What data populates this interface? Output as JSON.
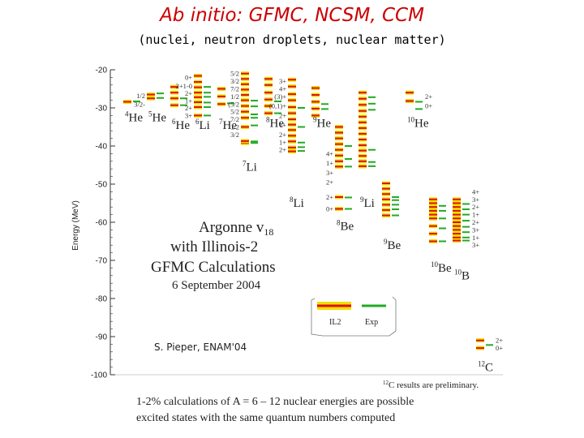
{
  "slide": {
    "title": "Ab initio: GFMC, NCSM, CCM",
    "subtitle": "(nuclei, neutron droplets, nuclear matter)",
    "caption_line1": "1-2% calculations of A = 6 – 12 nuclear energies are possible",
    "caption_line2": "excited states with the same quantum numbers computed"
  },
  "chart_data": {
    "type": "level-scheme",
    "ylabel": "Energy (MeV)",
    "ylim": [
      -100,
      -20
    ],
    "yticks": [
      -20,
      -30,
      -40,
      -50,
      -60,
      -70,
      -80,
      -90,
      -100
    ],
    "colors": {
      "il2": "#dd1100",
      "exp": "#22aa22",
      "band": "#f0e000",
      "axis": "#333333"
    },
    "annotations": {
      "box_line1": "Argonne v",
      "box_line1_sub": "18",
      "box_line2": "with Illinois-2",
      "box_line3": "GFMC Calculations",
      "box_line4": "6 September 2004",
      "legend_il2": "IL2",
      "legend_exp": "Exp",
      "credit": "S. Pieper, ENAM'04",
      "prelim_sup": "12",
      "prelim_text": "C results are preliminary."
    },
    "nuclei": [
      {
        "mass": "4",
        "symbol": "He",
        "col": 0,
        "label_e": -33.5,
        "il2": [
          -28.4
        ],
        "exp": [
          -28.3
        ]
      },
      {
        "mass": "5",
        "symbol": "He",
        "col": 1,
        "label_e": -33.5,
        "il2": [
          -27.5,
          -26.5
        ],
        "exp": [
          -27.4,
          -26.2
        ]
      },
      {
        "mass": "6",
        "symbol": "He",
        "col": 2,
        "label_e": -35.5,
        "il2": [
          -29.3,
          -27.5,
          -26.0,
          -24.5
        ],
        "exp": [
          -29.3,
          -27.5
        ]
      },
      {
        "mass": "6",
        "symbol": "Li",
        "col": 3,
        "label_e": -35.5,
        "il2": [
          -32.0,
          -29.8,
          -28.5,
          -27.2,
          -26.0,
          -24.6,
          -23.2,
          -21.6
        ],
        "exp": [
          -32.0,
          -29.8,
          -28.6,
          -27.1,
          -26.0,
          -24.5
        ]
      },
      {
        "mass": "7",
        "symbol": "He",
        "col": 4,
        "label_e": -35.5,
        "il2": [
          -29.0,
          -27.0,
          -25.0
        ],
        "exp": [
          -28.8
        ]
      },
      {
        "mass": "7",
        "symbol": "Li",
        "col": 5,
        "label_e": -46.5,
        "il2": [
          -39.2,
          -38.7,
          -35.0,
          -32.6,
          -31.0,
          -29.5,
          -28.0,
          -26.6,
          -25.2,
          -23.8,
          -22.4,
          -21.0
        ],
        "exp": [
          -39.2,
          -38.8,
          -34.6,
          -32.6,
          -31.7,
          -29.6,
          -28.1
        ]
      },
      {
        "mass": "8",
        "symbol": "He",
        "col": 6,
        "label_e": -35.0,
        "il2": [
          -31.4,
          -29.5,
          -27.8,
          -26.0,
          -24.0,
          -22.4
        ],
        "exp": [
          -31.4,
          -28.3
        ]
      },
      {
        "mass": "8",
        "symbol": "Li",
        "col": 7,
        "label_e": -56.0,
        "il2": [
          -41.4,
          -40.4,
          -38.8,
          -37.3,
          -35.8,
          -34.4,
          -33.0,
          -31.4,
          -29.8,
          -28.0,
          -26.4,
          -24.4,
          -22.6
        ],
        "exp": [
          -41.3,
          -40.3,
          -39.1,
          -35.0,
          -30.0
        ]
      },
      {
        "mass": "9",
        "symbol": "He",
        "col": 8,
        "label_e": -35.0,
        "il2": [
          -32.0,
          -30.2,
          -28.4,
          -26.6,
          -24.8
        ],
        "exp": [
          -30.3,
          -29.0
        ]
      },
      {
        "mass": "8",
        "symbol": "Be",
        "col": 9,
        "label_e": -62.0,
        "il2": [
          -56.5,
          -53.4,
          -45.4,
          -44.0,
          -42.5,
          -41.0,
          -39.5,
          -38.0,
          -36.5,
          -35.0
        ],
        "exp": [
          -56.5,
          -53.5,
          -45.4,
          -43.4,
          -40.0
        ]
      },
      {
        "mass": "9",
        "symbol": "Li",
        "col": 10,
        "label_e": -56.0,
        "il2": [
          -45.3,
          -44.0,
          -42.6,
          -41.2,
          -39.8,
          -38.3,
          -36.8,
          -35.3,
          -33.8,
          -32.3,
          -30.8,
          -29.2,
          -27.6,
          -26.0
        ],
        "exp": [
          -45.3,
          -44.2,
          -41.0,
          -30.5,
          -28.9,
          -27.2
        ]
      },
      {
        "mass": "9",
        "symbol": "Be",
        "col": 11,
        "label_e": -67.0,
        "il2": [
          -58.2,
          -56.8,
          -55.4,
          -54.0,
          -52.6,
          -51.2,
          -49.8
        ],
        "exp": [
          -58.2,
          -56.6,
          -55.4,
          -54.2,
          -53.4
        ]
      },
      {
        "mass": "10",
        "symbol": "He",
        "col": 12,
        "label_e": -35.0,
        "il2": [
          -28.2,
          -26.0
        ],
        "exp": [
          -30.3,
          -28.4
        ]
      },
      {
        "mass": "10",
        "symbol": "Be",
        "col": 13,
        "label_e": -73.0,
        "il2": [
          -65.0,
          -63.0,
          -61.0,
          -59.0,
          -58.0,
          -57.0,
          -56.0,
          -55.0,
          -54.0
        ],
        "exp": [
          -65.0,
          -61.6,
          -59.0,
          -57.0,
          -55.7
        ]
      },
      {
        "mass": "10",
        "symbol": "B",
        "col": 14,
        "label_e": -75.0,
        "il2": [
          -64.8,
          -64.0,
          -63.0,
          -62.0,
          -61.0,
          -60.0,
          -59.0,
          -58.0,
          -57.0,
          -56.0,
          -55.0,
          -54.0
        ],
        "exp": [
          -64.8,
          -64.0,
          -62.6,
          -61.2,
          -59.6,
          -58.0,
          -56.6,
          -55.2
        ]
      },
      {
        "mass": "12",
        "symbol": "C",
        "col": 15,
        "label_e": -99.0,
        "il2": [
          -91.0,
          -93.0
        ],
        "exp": [
          -92.2
        ]
      }
    ],
    "level_labels": [
      {
        "col": 3,
        "side": "left",
        "e": -22.0,
        "text": "0+"
      },
      {
        "col": 3,
        "side": "left",
        "e": -24.3,
        "text": "2+1-0"
      },
      {
        "col": 3,
        "side": "left",
        "e": -26.2,
        "text": "2+"
      },
      {
        "col": 3,
        "side": "left",
        "e": -28.2,
        "text": "1+"
      },
      {
        "col": 3,
        "side": "left",
        "e": -30.0,
        "text": "2+"
      },
      {
        "col": 3,
        "side": "left",
        "e": -32.0,
        "text": "3+"
      },
      {
        "col": 1,
        "side": "left",
        "e": -26.8,
        "text": "1/2"
      },
      {
        "col": 1,
        "side": "left",
        "e": -29.0,
        "text": "3/2-"
      },
      {
        "col": 5,
        "side": "left",
        "e": -21.0,
        "text": "5/2"
      },
      {
        "col": 5,
        "side": "left",
        "e": -23.0,
        "text": "3/2"
      },
      {
        "col": 5,
        "side": "left",
        "e": -25.0,
        "text": "7/2"
      },
      {
        "col": 5,
        "side": "left",
        "e": -27.0,
        "text": "1/2"
      },
      {
        "col": 5,
        "side": "left",
        "e": -29.0,
        "text": "(5/2"
      },
      {
        "col": 5,
        "side": "left",
        "e": -31.0,
        "text": "5/2"
      },
      {
        "col": 5,
        "side": "left",
        "e": -33.0,
        "text": "7/2"
      },
      {
        "col": 5,
        "side": "left",
        "e": -35.0,
        "text": "1/2"
      },
      {
        "col": 5,
        "side": "left",
        "e": -37.0,
        "text": "3/2"
      },
      {
        "col": 7,
        "side": "left",
        "e": -23.0,
        "text": "3+"
      },
      {
        "col": 7,
        "side": "left",
        "e": -25.0,
        "text": "4+"
      },
      {
        "col": 7,
        "side": "left",
        "e": -27.0,
        "text": "(3)+"
      },
      {
        "col": 7,
        "side": "left",
        "e": -29.5,
        "text": "(0,1)+"
      },
      {
        "col": 7,
        "side": "left",
        "e": -32.0,
        "text": "2+"
      },
      {
        "col": 7,
        "side": "left",
        "e": -34.5,
        "text": "1+"
      },
      {
        "col": 7,
        "side": "left",
        "e": -37.0,
        "text": "2+"
      },
      {
        "col": 7,
        "side": "left",
        "e": -39.0,
        "text": "1+"
      },
      {
        "col": 7,
        "side": "left",
        "e": -41.0,
        "text": "2+"
      },
      {
        "col": 9,
        "side": "left",
        "e": -42.0,
        "text": "4+"
      },
      {
        "col": 9,
        "side": "left",
        "e": -44.5,
        "text": "1+"
      },
      {
        "col": 9,
        "side": "left",
        "e": -47.0,
        "text": "3+"
      },
      {
        "col": 9,
        "side": "left",
        "e": -49.5,
        "text": "2+"
      },
      {
        "col": 9,
        "side": "left",
        "e": -53.4,
        "text": "2+"
      },
      {
        "col": 9,
        "side": "left",
        "e": -56.5,
        "text": "0+"
      },
      {
        "col": 14,
        "side": "right",
        "e": -52.0,
        "text": "4+"
      },
      {
        "col": 14,
        "side": "right",
        "e": -54.0,
        "text": "3+"
      },
      {
        "col": 14,
        "side": "right",
        "e": -56.0,
        "text": "2+"
      },
      {
        "col": 14,
        "side": "right",
        "e": -58.0,
        "text": "1+"
      },
      {
        "col": 14,
        "side": "right",
        "e": -60.0,
        "text": "2+"
      },
      {
        "col": 14,
        "side": "right",
        "e": -62.0,
        "text": "3+"
      },
      {
        "col": 14,
        "side": "right",
        "e": -64.0,
        "text": "1+"
      },
      {
        "col": 14,
        "side": "right",
        "e": -66.0,
        "text": "3+"
      },
      {
        "col": 12,
        "side": "right",
        "e": -27.0,
        "text": "2+"
      },
      {
        "col": 12,
        "side": "right",
        "e": -29.5,
        "text": "0+"
      },
      {
        "col": 15,
        "side": "right",
        "e": -91.0,
        "text": "2+"
      },
      {
        "col": 15,
        "side": "right",
        "e": -93.0,
        "text": "0+"
      }
    ]
  }
}
